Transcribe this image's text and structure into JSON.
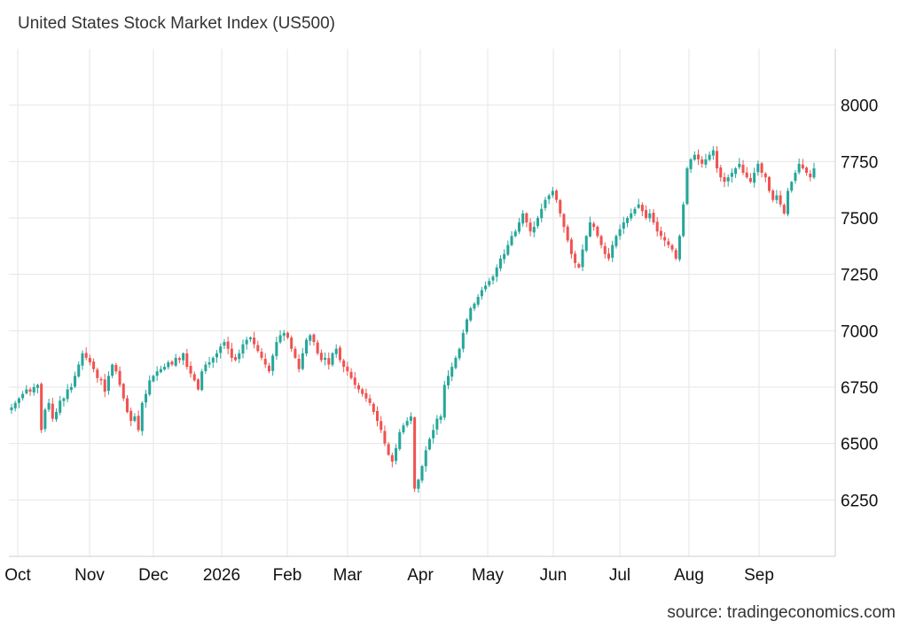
{
  "title": "United States Stock Market Index (US500)",
  "source": "source: tradingeconomics.com",
  "colors": {
    "up": "#26a69a",
    "down": "#ef5350",
    "grid": "#e6e6e6",
    "axis": "#cccccc"
  },
  "chart_data": {
    "type": "candlestick",
    "title": "United States Stock Market Index (US500)",
    "x_ticks": [
      "Oct",
      "Nov",
      "Dec",
      "2026",
      "Feb",
      "Mar",
      "Apr",
      "May",
      "Jun",
      "Jul",
      "Aug",
      "Sep"
    ],
    "y_ticks": [
      6250,
      6500,
      6750,
      7000,
      7250,
      7500,
      7750,
      8000
    ],
    "ylim": [
      6000,
      8250
    ],
    "grid": true,
    "x_range": [
      "2025-09-30",
      "2026-09-30"
    ],
    "series_close": [
      6660,
      6680,
      6700,
      6720,
      6740,
      6730,
      6750,
      6760,
      6560,
      6650,
      6680,
      6610,
      6640,
      6690,
      6700,
      6740,
      6750,
      6800,
      6850,
      6900,
      6880,
      6860,
      6830,
      6790,
      6780,
      6730,
      6800,
      6850,
      6820,
      6760,
      6700,
      6640,
      6600,
      6620,
      6560,
      6680,
      6720,
      6780,
      6800,
      6820,
      6830,
      6840,
      6860,
      6850,
      6880,
      6870,
      6900,
      6840,
      6810,
      6780,
      6740,
      6820,
      6850,
      6860,
      6880,
      6900,
      6930,
      6950,
      6920,
      6880,
      6870,
      6900,
      6940,
      6960,
      6970,
      6940,
      6910,
      6880,
      6850,
      6820,
      6890,
      6950,
      6980,
      6990,
      6970,
      6920,
      6880,
      6830,
      6900,
      6960,
      6980,
      6950,
      6900,
      6870,
      6880,
      6850,
      6900,
      6920,
      6870,
      6840,
      6820,
      6790,
      6760,
      6740,
      6720,
      6700,
      6680,
      6640,
      6600,
      6560,
      6500,
      6450,
      6420,
      6480,
      6550,
      6580,
      6600,
      6620,
      6300,
      6340,
      6400,
      6470,
      6520,
      6560,
      6610,
      6620,
      6760,
      6800,
      6840,
      6880,
      6920,
      6990,
      7050,
      7100,
      7120,
      7150,
      7180,
      7200,
      7220,
      7240,
      7280,
      7320,
      7340,
      7380,
      7420,
      7440,
      7480,
      7520,
      7480,
      7440,
      7460,
      7500,
      7540,
      7580,
      7600,
      7620,
      7580,
      7520,
      7460,
      7400,
      7340,
      7300,
      7280,
      7360,
      7420,
      7480,
      7460,
      7420,
      7380,
      7340,
      7320,
      7380,
      7420,
      7450,
      7480,
      7500,
      7520,
      7540,
      7560,
      7530,
      7500,
      7520,
      7480,
      7440,
      7420,
      7400,
      7380,
      7360,
      7320,
      7420,
      7560,
      7720,
      7760,
      7780,
      7760,
      7740,
      7760,
      7780,
      7800,
      7720,
      7680,
      7660,
      7680,
      7700,
      7720,
      7740,
      7700,
      7680,
      7660,
      7700,
      7740,
      7700,
      7680,
      7620,
      7580,
      7600,
      7560,
      7520,
      7620,
      7660,
      7700,
      7740,
      7720,
      7700,
      7680,
      7720
    ]
  }
}
